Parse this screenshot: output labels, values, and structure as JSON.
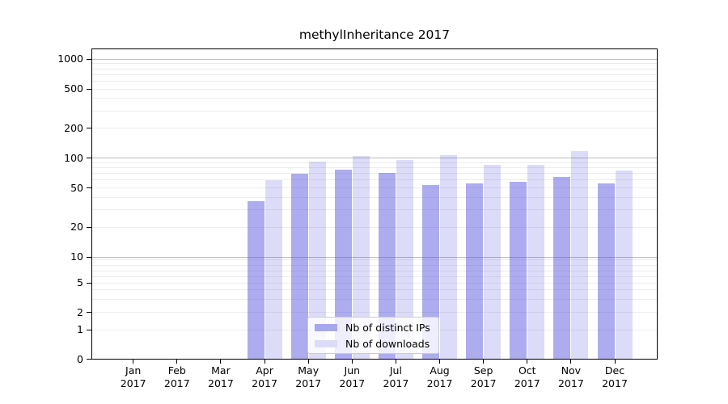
{
  "title": "methylInheritance 2017",
  "legend": {
    "items": [
      {
        "label": "Nb of distinct IPs",
        "series": "distinct_ips",
        "swatch_color": "#a7a7f0"
      },
      {
        "label": "Nb of downloads",
        "series": "downloads",
        "swatch_color": "#dcdcf8"
      }
    ]
  },
  "axes": {
    "y_tick_values": [
      1000,
      500,
      200,
      100,
      50,
      20,
      10,
      5,
      2,
      1,
      0
    ],
    "y_tick_labels": [
      "1000",
      "500",
      "200",
      "100",
      "50",
      "20",
      "10",
      "5",
      "2",
      "1",
      "0"
    ],
    "y_minor_gridline_values": [
      1,
      2,
      3,
      4,
      5,
      6,
      7,
      8,
      9,
      20,
      30,
      40,
      50,
      60,
      70,
      80,
      90,
      200,
      300,
      400,
      500,
      600,
      700,
      800,
      900
    ],
    "y_major_gridline_values": [
      10,
      100,
      1000
    ],
    "x_tick_months": [
      "Jan",
      "Feb",
      "Mar",
      "Apr",
      "May",
      "Jun",
      "Jul",
      "Aug",
      "Sep",
      "Oct",
      "Nov",
      "Dec"
    ],
    "x_tick_year": "2017"
  },
  "chart_data": {
    "type": "bar",
    "title": "methylInheritance 2017",
    "categories": [
      "Jan 2017",
      "Feb 2017",
      "Mar 2017",
      "Apr 2017",
      "May 2017",
      "Jun 2017",
      "Jul 2017",
      "Aug 2017",
      "Sep 2017",
      "Oct 2017",
      "Nov 2017",
      "Dec 2017"
    ],
    "series": [
      {
        "name": "Nb of distinct IPs",
        "values": [
          0,
          0,
          0,
          37,
          70,
          77,
          71,
          53,
          56,
          58,
          64,
          56
        ],
        "fill": "rgba(70,70,220,0.45)"
      },
      {
        "name": "Nb of downloads",
        "values": [
          0,
          0,
          0,
          60,
          92,
          105,
          96,
          107,
          85,
          85,
          118,
          75
        ],
        "fill": "rgba(70,70,220,0.19)"
      }
    ],
    "yscale": "symlog",
    "ylim": [
      0,
      1270
    ],
    "grid": true,
    "legend_position": "lower center"
  },
  "colors": {
    "bar_dark": "rgba(70,70,220,0.45)",
    "bar_light": "rgba(70,70,220,0.19)",
    "grid_minor": "#ededed",
    "grid_major": "#bdbdbd",
    "spine": "#000000"
  }
}
